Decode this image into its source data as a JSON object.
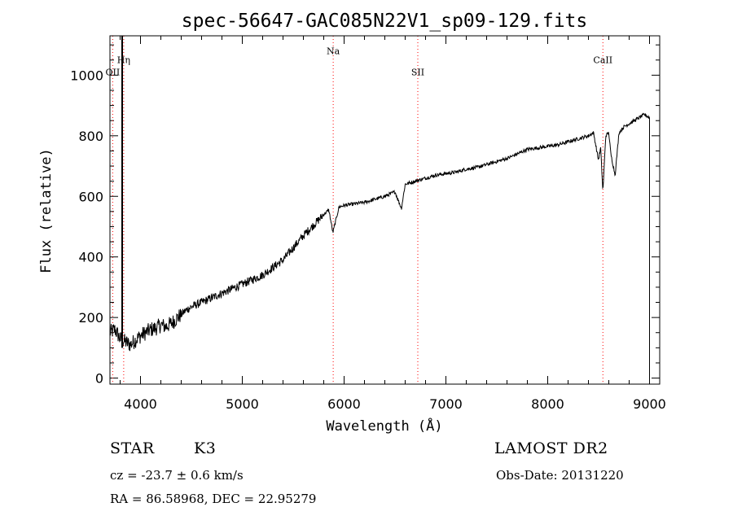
{
  "chart_data": {
    "type": "line",
    "title": "spec-56647-GAC085N22V1_sp09-129.fits",
    "xlabel": "Wavelength (Å)",
    "ylabel": "Flux (relative)",
    "xlim": [
      3700,
      9100
    ],
    "ylim": [
      -20,
      1130
    ],
    "x_ticks": [
      4000,
      5000,
      6000,
      7000,
      8000,
      9000
    ],
    "y_ticks": [
      0,
      200,
      400,
      600,
      800,
      1000
    ],
    "grid": false,
    "line_color": "#000000",
    "marker_color": "#ff0000",
    "series": [
      {
        "x": [
          3700,
          3750,
          3800,
          3850,
          3900,
          3950,
          4000,
          4050,
          4100,
          4150,
          4200,
          4250,
          4300,
          4350,
          4400,
          4450,
          4500,
          4600,
          4700,
          4800,
          4900,
          5000,
          5100,
          5200,
          5300,
          5400,
          5500,
          5600,
          5700,
          5800,
          5850,
          5890,
          5950,
          6000,
          6100,
          6200,
          6300,
          6400,
          6500,
          6563,
          6600,
          6700,
          6800,
          6900,
          7000,
          7100,
          7200,
          7300,
          7400,
          7500,
          7600,
          7700,
          7800,
          7900,
          8000,
          8100,
          8200,
          8300,
          8400,
          8450,
          8498,
          8520,
          8542,
          8570,
          8600,
          8620,
          8662,
          8700,
          8750,
          8800,
          8850,
          8900,
          8950,
          9000
        ],
        "y": [
          150,
          160,
          130,
          120,
          110,
          125,
          140,
          150,
          160,
          165,
          175,
          170,
          180,
          195,
          210,
          225,
          235,
          250,
          265,
          280,
          295,
          310,
          325,
          340,
          365,
          390,
          430,
          470,
          505,
          540,
          555,
          480,
          565,
          570,
          575,
          580,
          590,
          600,
          615,
          560,
          640,
          650,
          660,
          670,
          675,
          680,
          690,
          695,
          705,
          715,
          725,
          740,
          755,
          760,
          765,
          770,
          780,
          790,
          800,
          810,
          720,
          760,
          615,
          800,
          810,
          740,
          670,
          810,
          830,
          840,
          850,
          860,
          870,
          860
        ]
      }
    ],
    "line_markers": [
      {
        "label": "OII",
        "x": 3727,
        "y": 1000
      },
      {
        "label": "Hη",
        "x": 3835,
        "y": 1040
      },
      {
        "label": "Na",
        "x": 5893,
        "y": 1070
      },
      {
        "label": "SII",
        "x": 6724,
        "y": 1000
      },
      {
        "label": "CaII",
        "x": 8542,
        "y": 1040
      }
    ]
  },
  "info": {
    "object_type": "STAR",
    "subclass": "K3",
    "survey": "LAMOST DR2",
    "cz_line": "cz = -23.7 ± 0.6 km/s",
    "obs_date": "Obs-Date: 20131220",
    "coords": "RA =  86.58968, DEC =  22.95279"
  }
}
